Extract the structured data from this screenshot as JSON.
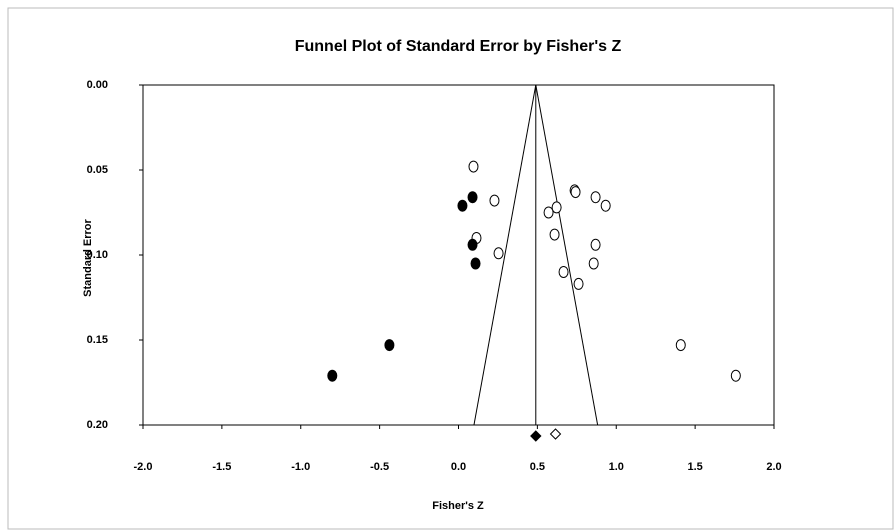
{
  "chart_data": {
    "type": "scatter",
    "title": "Funnel Plot of Standard Error by Fisher's Z",
    "x_label": "Fisher's Z",
    "y_label": "Standard Error",
    "xlim": [
      -2.0,
      2.0
    ],
    "ylim": [
      0.2,
      0.0
    ],
    "y_inverted": true,
    "xticks": [
      {
        "value": -2.0,
        "label": "-2.0"
      },
      {
        "value": -1.5,
        "label": "-1.5"
      },
      {
        "value": -1.0,
        "label": "-1.0"
      },
      {
        "value": -0.5,
        "label": "-0.5"
      },
      {
        "value": 0.0,
        "label": "0.0"
      },
      {
        "value": 0.5,
        "label": "0.5"
      },
      {
        "value": 1.0,
        "label": "1.0"
      },
      {
        "value": 1.5,
        "label": "1.5"
      },
      {
        "value": 2.0,
        "label": "2.0"
      }
    ],
    "yticks": [
      {
        "value": 0.0,
        "label": "0.00"
      },
      {
        "value": 0.05,
        "label": "0.05"
      },
      {
        "value": 0.1,
        "label": "0.10"
      },
      {
        "value": 0.15,
        "label": "0.15"
      },
      {
        "value": 0.2,
        "label": "0.20"
      }
    ],
    "funnel_center": 0.49,
    "funnel_bottom": [
      0.098,
      0.882
    ],
    "series": [
      {
        "color": "#000000",
        "fill": "#ffffff",
        "x": [
          0.095,
          0.228,
          0.114,
          0.254,
          0.571,
          0.622,
          0.736,
          0.742,
          0.869,
          0.933,
          0.609,
          0.869,
          0.666,
          0.857,
          0.761,
          1.409,
          1.758
        ],
        "values": [
          0.048,
          0.068,
          0.09,
          0.099,
          0.075,
          0.072,
          0.062,
          0.063,
          0.066,
          0.071,
          0.088,
          0.094,
          0.11,
          0.105,
          0.117,
          0.153,
          0.171
        ]
      },
      {
        "color": "#000000",
        "fill": "#000000",
        "x": [
          0.025,
          0.089,
          0.089,
          0.108,
          -0.438,
          -0.8
        ],
        "values": [
          0.071,
          0.066,
          0.094,
          0.105,
          0.153,
          0.171
        ]
      }
    ],
    "summary": [
      {
        "fill": "#000000",
        "x": 0.49
      },
      {
        "fill": "#ffffff",
        "x": 0.615
      }
    ]
  }
}
